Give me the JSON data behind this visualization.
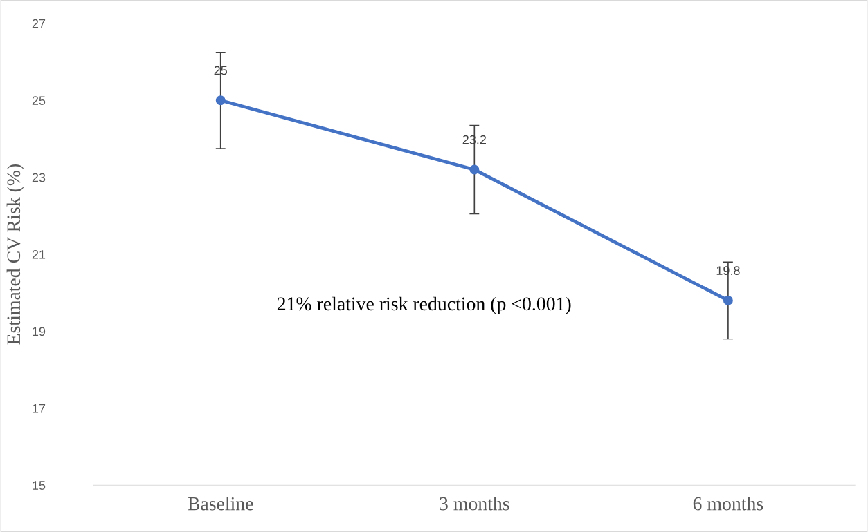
{
  "chart_data": {
    "type": "line",
    "ylabel": "Estimated CV Risk (%)",
    "categories": [
      "Baseline",
      "3 months",
      "6 months"
    ],
    "series": [
      {
        "color": "#4472c4",
        "values": [
          25,
          23.2,
          19.8
        ],
        "errors": [
          1.25,
          1.15,
          1.0
        ]
      }
    ],
    "ylim": [
      15,
      27
    ],
    "yticks": [
      15,
      17,
      19,
      21,
      23,
      25,
      27
    ],
    "data_labels": true,
    "marker": "circle",
    "grid": false,
    "legend": false,
    "annotations": [
      "21% relative risk reduction (p <0.001)"
    ]
  }
}
